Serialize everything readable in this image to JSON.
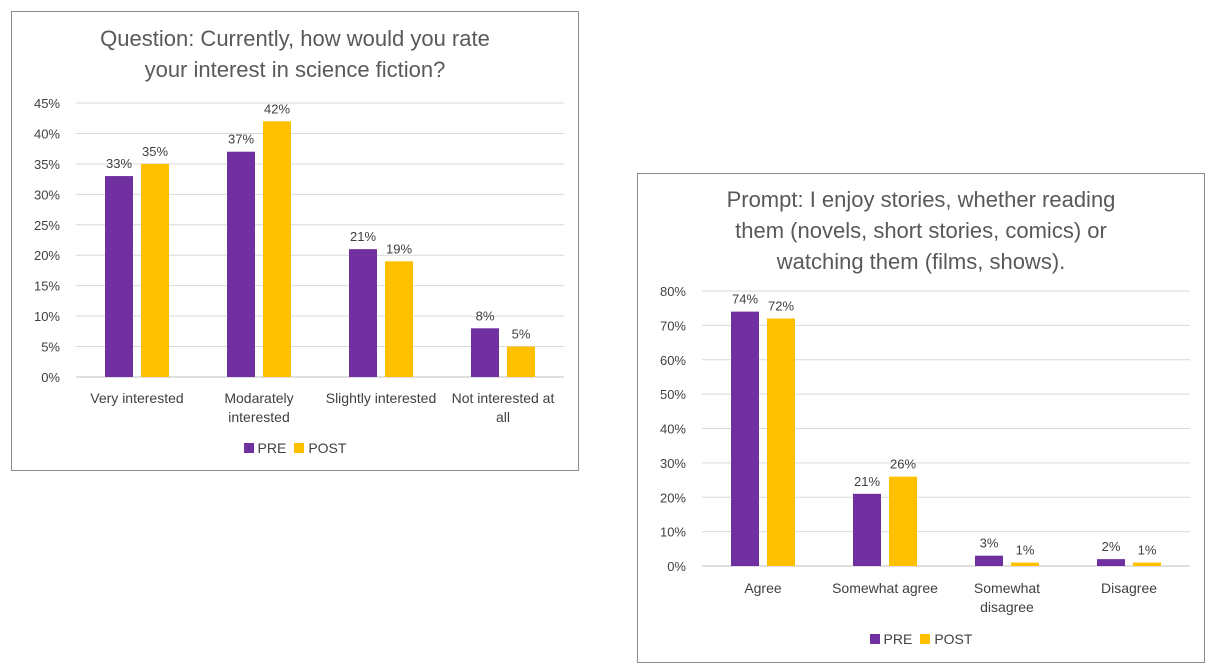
{
  "colors": {
    "pre": "#7030A0",
    "post": "#FFC000",
    "grid": "#d9d9d9",
    "axis": "#bfbfbf"
  },
  "chart_data": [
    {
      "type": "bar",
      "title": [
        "Question: Currently, how would you rate",
        "your interest in science fiction?"
      ],
      "categories": [
        [
          "Very interested"
        ],
        [
          "Modarately",
          "interested"
        ],
        [
          "Slightly interested"
        ],
        [
          "Not interested at",
          "all"
        ]
      ],
      "series": [
        {
          "name": "PRE",
          "values": [
            33,
            37,
            21,
            8
          ],
          "labels": [
            "33%",
            "37%",
            "21%",
            "8%"
          ]
        },
        {
          "name": "POST",
          "values": [
            35,
            42,
            19,
            5
          ],
          "labels": [
            "35%",
            "42%",
            "19%",
            "5%"
          ]
        }
      ],
      "ylim": [
        0,
        45
      ],
      "yticks": [
        "0%",
        "5%",
        "10%",
        "15%",
        "20%",
        "25%",
        "30%",
        "35%",
        "40%",
        "45%"
      ],
      "grid": true,
      "legend": "bottom"
    },
    {
      "type": "bar",
      "title": [
        "Prompt: I enjoy stories, whether reading",
        "them (novels, short stories, comics) or",
        "watching them (films, shows)."
      ],
      "categories": [
        [
          "Agree"
        ],
        [
          "Somewhat agree"
        ],
        [
          "Somewhat",
          "disagree"
        ],
        [
          "Disagree"
        ]
      ],
      "series": [
        {
          "name": "PRE",
          "values": [
            74,
            21,
            3,
            2
          ],
          "labels": [
            "74%",
            "21%",
            "3%",
            "2%"
          ]
        },
        {
          "name": "POST",
          "values": [
            72,
            26,
            1,
            1
          ],
          "labels": [
            "72%",
            "26%",
            "1%",
            "1%"
          ]
        }
      ],
      "ylim": [
        0,
        80
      ],
      "yticks": [
        "0%",
        "10%",
        "20%",
        "30%",
        "40%",
        "50%",
        "60%",
        "70%",
        "80%"
      ],
      "grid": true,
      "legend": "bottom"
    }
  ]
}
